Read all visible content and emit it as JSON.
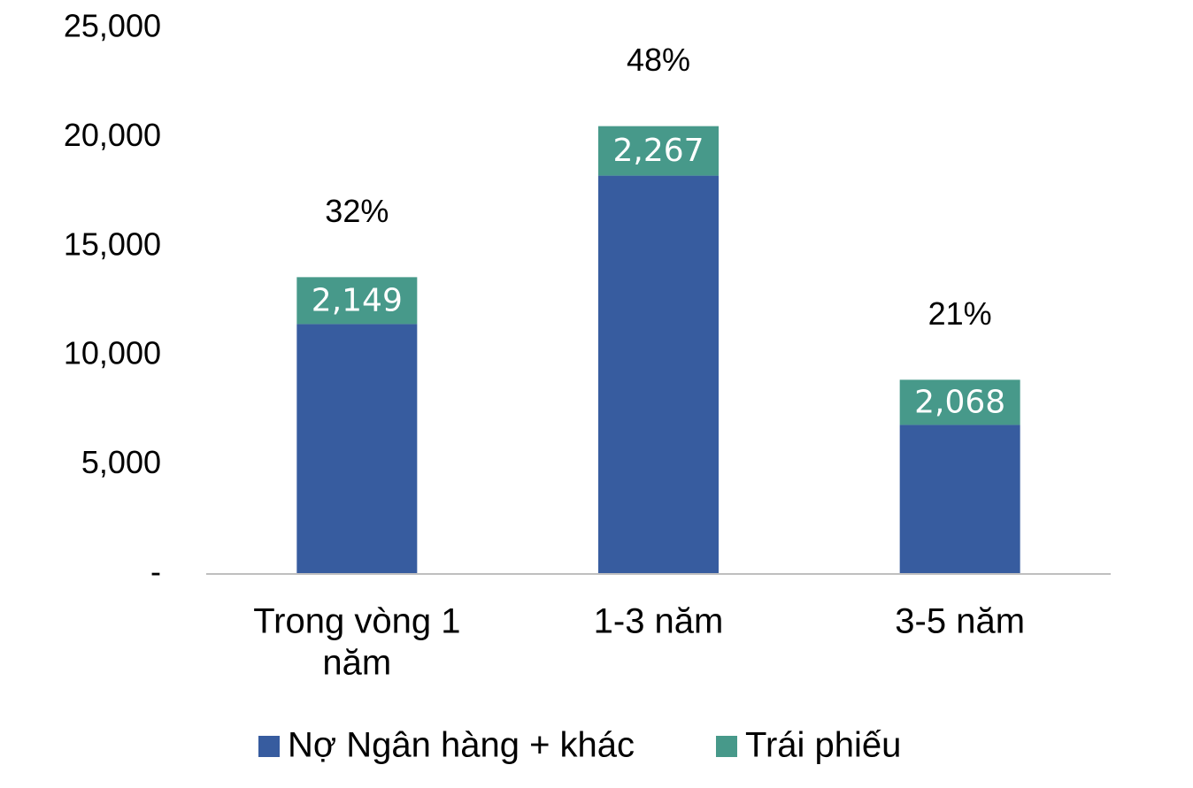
{
  "chart_data": {
    "type": "bar",
    "stacked": true,
    "categories": [
      "Trong vòng 1 năm",
      "1-3 năm",
      "3-5 năm"
    ],
    "category_lines": [
      [
        "Trong vòng 1",
        "năm"
      ],
      [
        "1-3 năm"
      ],
      [
        "3-5 năm"
      ]
    ],
    "series": [
      {
        "name": "Nợ Ngân hàng + khác",
        "color": "#375C9F",
        "values": [
          11450,
          18250,
          6830
        ]
      },
      {
        "name": "Trái phiếu",
        "color": "#47998A",
        "values": [
          2149,
          2267,
          2068
        ],
        "data_labels": [
          "2,149",
          "2,267",
          "2,068"
        ]
      }
    ],
    "share_labels": [
      "32%",
      "48%",
      "21%"
    ],
    "ylim": [
      0,
      25000
    ],
    "yticks": [
      0,
      5000,
      10000,
      15000,
      20000,
      25000
    ],
    "ytick_labels": [
      "-",
      "5,000",
      "10,000",
      "15,000",
      "20,000",
      "25,000"
    ],
    "xlabel": "",
    "ylabel": "",
    "title": "",
    "grid": false,
    "legend_position": "bottom",
    "axis_color": "#BFBFBF"
  }
}
